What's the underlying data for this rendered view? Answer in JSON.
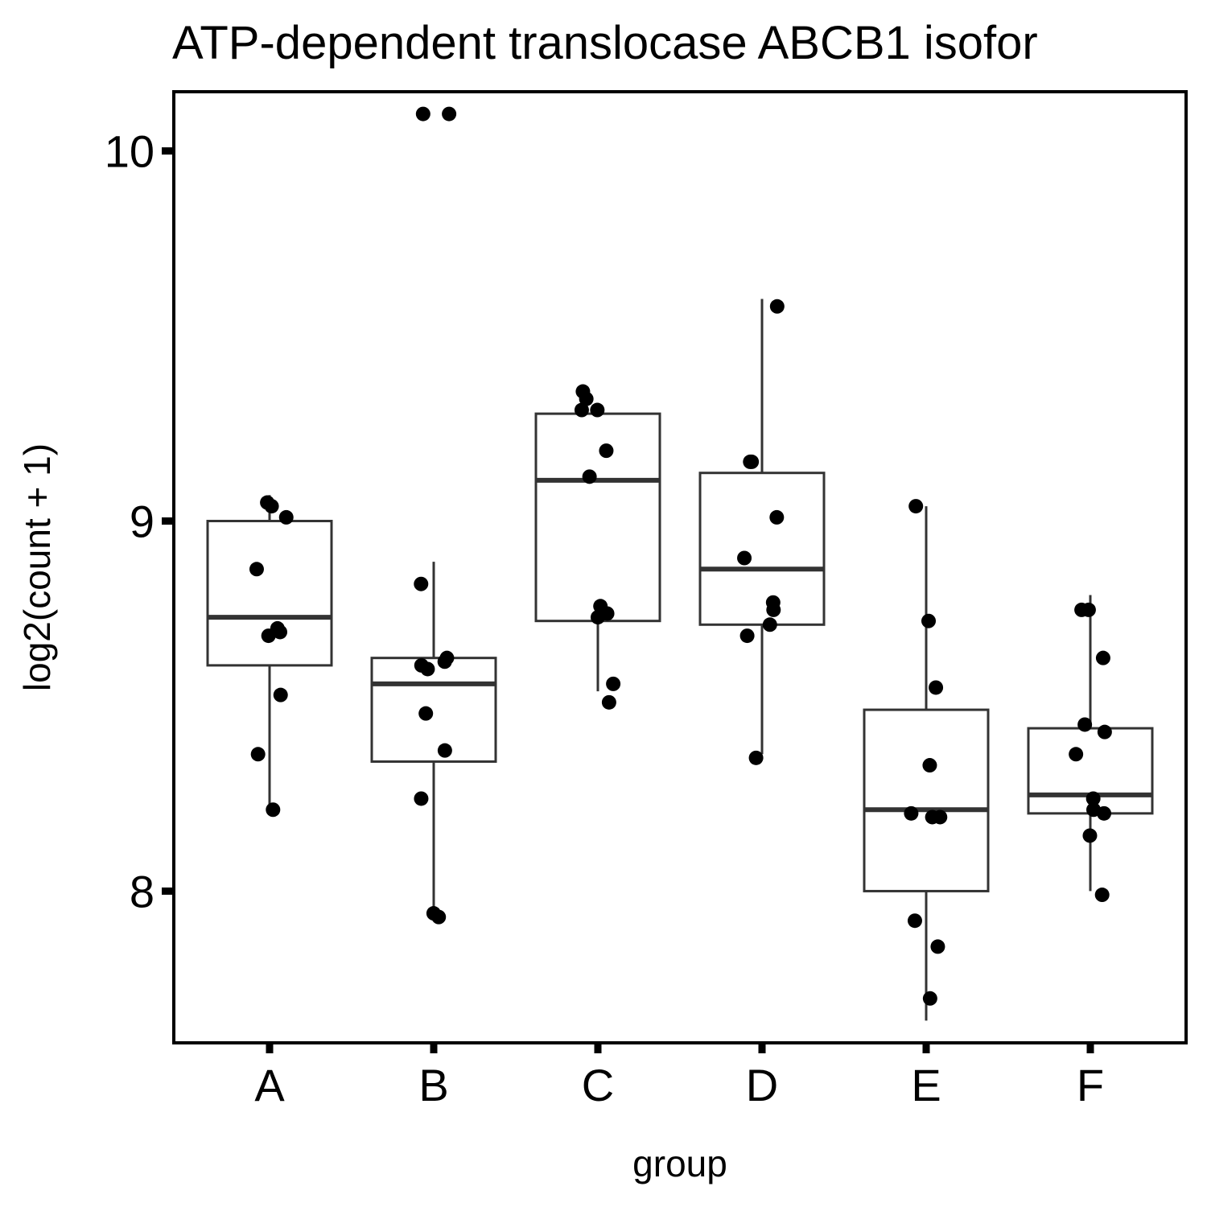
{
  "chart_data": {
    "type": "box",
    "title": "ATP-dependent translocase ABCB1 isofor",
    "xlabel": "group",
    "ylabel": "log2(count + 1)",
    "categories": [
      "A",
      "B",
      "C",
      "D",
      "E",
      "F"
    ],
    "y_ticks": [
      8,
      9,
      10
    ],
    "y_tick_labels": [
      "8",
      "9",
      "10"
    ],
    "ylim": [
      7.59,
      10.16
    ],
    "grid": false,
    "legend": "none",
    "boxes": [
      {
        "group": "A",
        "whisker_low": 8.23,
        "q1": 8.61,
        "median": 8.74,
        "q3": 9.0,
        "whisker_high": 9.07
      },
      {
        "group": "B",
        "whisker_low": 7.93,
        "q1": 8.35,
        "median": 8.56,
        "q3": 8.63,
        "whisker_high": 8.89
      },
      {
        "group": "C",
        "whisker_low": 8.54,
        "q1": 8.73,
        "median": 9.11,
        "q3": 9.29,
        "whisker_high": 9.31
      },
      {
        "group": "D",
        "whisker_low": 8.37,
        "q1": 8.72,
        "median": 8.87,
        "q3": 9.13,
        "whisker_high": 9.6
      },
      {
        "group": "E",
        "whisker_low": 7.65,
        "q1": 8.0,
        "median": 8.22,
        "q3": 8.49,
        "whisker_high": 9.04
      },
      {
        "group": "F",
        "whisker_low": 8.0,
        "q1": 8.21,
        "median": 8.26,
        "q3": 8.44,
        "whisker_high": 8.8
      }
    ],
    "points": [
      {
        "group": "A",
        "values": [
          9.04,
          9.01,
          9.05,
          8.87,
          8.71,
          8.69,
          8.7,
          8.53,
          8.37,
          8.22
        ]
      },
      {
        "group": "B",
        "values": [
          10.1,
          10.1,
          8.83,
          8.63,
          8.62,
          8.6,
          8.61,
          8.48,
          8.38,
          8.25,
          7.94,
          7.93
        ]
      },
      {
        "group": "C",
        "values": [
          9.35,
          9.33,
          9.3,
          9.3,
          9.19,
          9.12,
          8.77,
          8.74,
          8.75,
          8.56,
          8.51
        ]
      },
      {
        "group": "D",
        "values": [
          9.58,
          9.16,
          9.16,
          9.01,
          8.9,
          8.78,
          8.76,
          8.72,
          8.69,
          8.36
        ]
      },
      {
        "group": "E",
        "values": [
          9.04,
          8.73,
          8.55,
          8.34,
          8.2,
          8.21,
          8.2,
          7.92,
          7.85,
          7.71
        ]
      },
      {
        "group": "F",
        "values": [
          8.76,
          8.76,
          8.63,
          8.45,
          8.43,
          8.37,
          8.25,
          8.21,
          8.22,
          8.15,
          7.99
        ]
      }
    ],
    "colors": {
      "points": "#000000",
      "box_stroke": "#333333",
      "panel_border": "#000000",
      "background": "#ffffff"
    }
  }
}
